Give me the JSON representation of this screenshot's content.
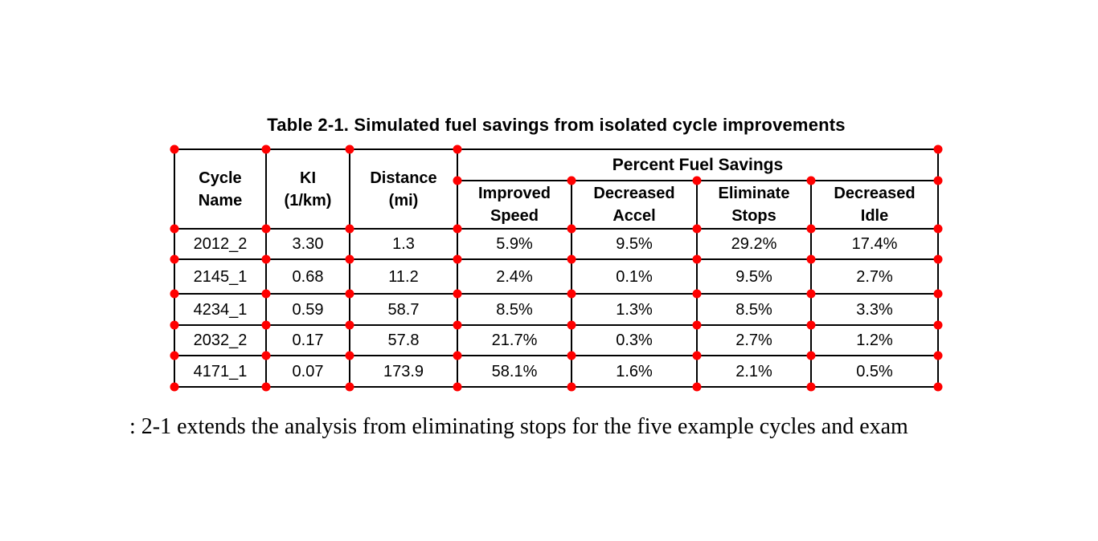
{
  "caption": "Table 2-1. Simulated fuel savings from isolated cycle improvements",
  "table": {
    "group_header": "Percent Fuel Savings",
    "col_headers": [
      "Cycle\nName",
      "KI\n(1/km)",
      "Distance\n(mi)",
      "Improved\nSpeed",
      "Decreased\nAccel",
      "Eliminate\nStops",
      "Decreased\nIdle"
    ],
    "rows": [
      [
        "2012_2",
        "3.30",
        "1.3",
        "5.9%",
        "9.5%",
        "29.2%",
        "17.4%"
      ],
      [
        "2145_1",
        "0.68",
        "11.2",
        "2.4%",
        "0.1%",
        "9.5%",
        "2.7%"
      ],
      [
        "4234_1",
        "0.59",
        "58.7",
        "8.5%",
        "1.3%",
        "8.5%",
        "3.3%"
      ],
      [
        "2032_2",
        "0.17",
        "57.8",
        "21.7%",
        "0.3%",
        "2.7%",
        "1.2%"
      ],
      [
        "4171_1",
        "0.07",
        "173.9",
        "58.1%",
        "1.6%",
        "2.1%",
        "0.5%"
      ]
    ]
  },
  "body_text": {
    "clipped_char": ":",
    "sentence": "2-1 extends the analysis from eliminating stops for the five example cycles and exam"
  },
  "colors": {
    "marker": "#ff0000",
    "grid_line": "#000000",
    "background": "#ffffff",
    "text": "#000000"
  }
}
